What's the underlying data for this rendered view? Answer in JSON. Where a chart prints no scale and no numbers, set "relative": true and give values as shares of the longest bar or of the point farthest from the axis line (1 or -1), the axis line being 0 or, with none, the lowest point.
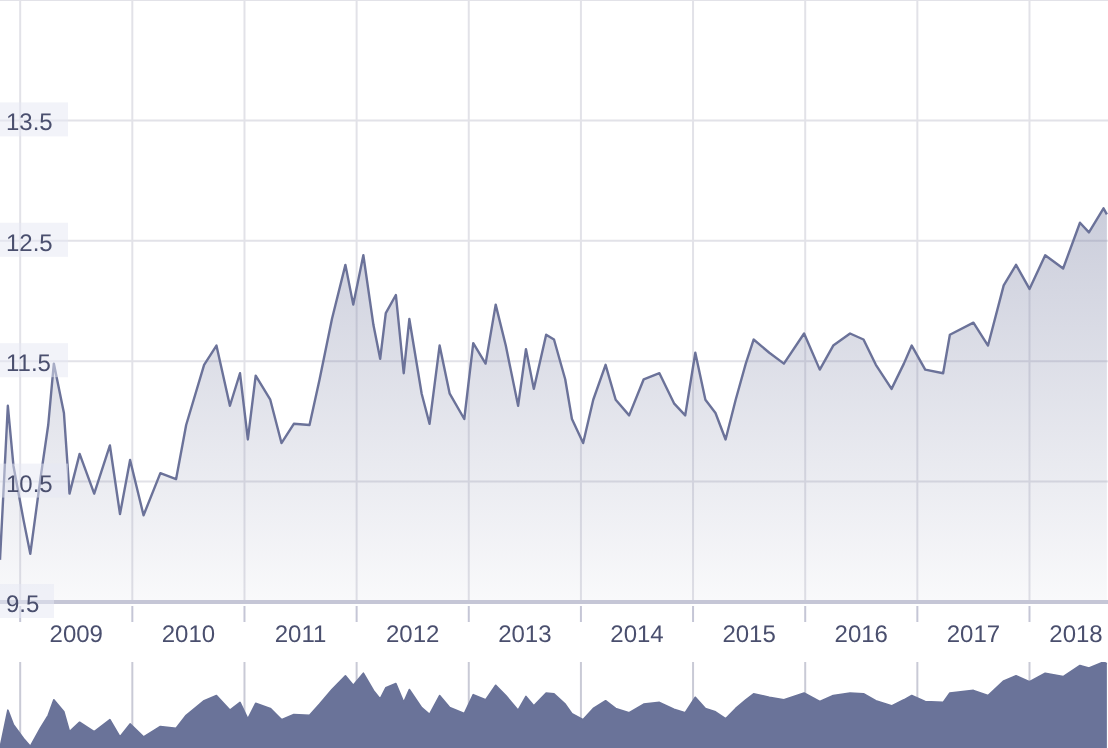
{
  "chart_data": [
    {
      "type": "area",
      "x": [
        2008.82,
        2008.89,
        2008.94,
        2009.03,
        2009.09,
        2009.18,
        2009.25,
        2009.3,
        2009.39,
        2009.44,
        2009.53,
        2009.66,
        2009.8,
        2009.89,
        2009.98,
        2010.1,
        2010.25,
        2010.39,
        2010.48,
        2010.64,
        2010.75,
        2010.87,
        2010.96,
        2011.03,
        2011.1,
        2011.23,
        2011.33,
        2011.44,
        2011.58,
        2011.67,
        2011.78,
        2011.9,
        2011.97,
        2012.06,
        2012.15,
        2012.21,
        2012.26,
        2012.35,
        2012.42,
        2012.47,
        2012.58,
        2012.65,
        2012.74,
        2012.83,
        2012.96,
        2013.04,
        2013.15,
        2013.24,
        2013.33,
        2013.44,
        2013.51,
        2013.58,
        2013.69,
        2013.76,
        2013.86,
        2013.92,
        2014.02,
        2014.11,
        2014.22,
        2014.31,
        2014.43,
        2014.56,
        2014.7,
        2014.83,
        2014.93,
        2015.02,
        2015.11,
        2015.2,
        2015.29,
        2015.38,
        2015.47,
        2015.54,
        2015.68,
        2015.81,
        2015.99,
        2016.13,
        2016.25,
        2016.4,
        2016.52,
        2016.63,
        2016.77,
        2016.88,
        2016.95,
        2017.07,
        2017.23,
        2017.29,
        2017.5,
        2017.63,
        2017.77,
        2017.88,
        2018.0,
        2018.14,
        2018.3,
        2018.45,
        2018.53,
        2018.66,
        2018.69
      ],
      "series": [
        {
          "color": "#6b7299",
          "values": [
            9.85,
            11.13,
            10.63,
            10.18,
            9.9,
            10.52,
            10.97,
            11.48,
            11.07,
            10.4,
            10.73,
            10.4,
            10.8,
            10.23,
            10.68,
            10.22,
            10.57,
            10.52,
            10.97,
            11.47,
            11.63,
            11.13,
            11.4,
            10.85,
            11.38,
            11.18,
            10.82,
            10.98,
            10.97,
            11.35,
            11.85,
            12.3,
            11.97,
            12.38,
            11.8,
            11.52,
            11.9,
            12.05,
            11.4,
            11.85,
            11.23,
            10.98,
            11.63,
            11.23,
            11.02,
            11.65,
            11.48,
            11.97,
            11.63,
            11.13,
            11.6,
            11.27,
            11.72,
            11.68,
            11.35,
            11.02,
            10.82,
            11.18,
            11.47,
            11.18,
            11.05,
            11.35,
            11.4,
            11.15,
            11.05,
            11.57,
            11.18,
            11.07,
            10.85,
            11.18,
            11.48,
            11.68,
            11.57,
            11.48,
            11.73,
            11.43,
            11.63,
            11.73,
            11.68,
            11.47,
            11.27,
            11.48,
            11.63,
            11.43,
            11.4,
            11.72,
            11.82,
            11.63,
            12.13,
            12.3,
            12.1,
            12.38,
            12.27,
            12.65,
            12.57,
            12.77,
            12.72
          ]
        }
      ],
      "xlim": [
        2008.82,
        2018.7
      ],
      "xticks": [
        {
          "value": 2009,
          "label": null
        },
        {
          "value": 2009.5,
          "label": "2009"
        },
        {
          "value": 2010,
          "label": null
        },
        {
          "value": 2010.5,
          "label": "2010"
        },
        {
          "value": 2011,
          "label": null
        },
        {
          "value": 2011.5,
          "label": "2011"
        },
        {
          "value": 2012,
          "label": null
        },
        {
          "value": 2012.5,
          "label": "2012"
        },
        {
          "value": 2013,
          "label": null
        },
        {
          "value": 2013.5,
          "label": "2013"
        },
        {
          "value": 2014,
          "label": null
        },
        {
          "value": 2014.5,
          "label": "2014"
        },
        {
          "value": 2015,
          "label": null
        },
        {
          "value": 2015.5,
          "label": "2015"
        },
        {
          "value": 2016,
          "label": null
        },
        {
          "value": 2016.5,
          "label": "2016"
        },
        {
          "value": 2017,
          "label": null
        },
        {
          "value": 2017.5,
          "label": "2017"
        },
        {
          "value": 2018,
          "label": null
        },
        {
          "value": 2018.5,
          "label": "2018"
        }
      ],
      "ylim": [
        9.5,
        14.5
      ],
      "yticks": [
        9.5,
        10.5,
        11.5,
        12.5,
        13.5
      ],
      "grid": true
    },
    {
      "type": "area",
      "x": [
        2008.82,
        2008.89,
        2008.94,
        2009.03,
        2009.09,
        2009.18,
        2009.25,
        2009.3,
        2009.39,
        2009.44,
        2009.53,
        2009.66,
        2009.8,
        2009.89,
        2009.98,
        2010.1,
        2010.25,
        2010.39,
        2010.48,
        2010.64,
        2010.75,
        2010.87,
        2010.96,
        2011.03,
        2011.1,
        2011.23,
        2011.33,
        2011.44,
        2011.58,
        2011.67,
        2011.78,
        2011.9,
        2011.97,
        2012.06,
        2012.15,
        2012.21,
        2012.26,
        2012.35,
        2012.42,
        2012.47,
        2012.58,
        2012.65,
        2012.74,
        2012.83,
        2012.96,
        2013.04,
        2013.15,
        2013.24,
        2013.33,
        2013.44,
        2013.51,
        2013.58,
        2013.69,
        2013.76,
        2013.86,
        2013.92,
        2014.02,
        2014.11,
        2014.22,
        2014.31,
        2014.43,
        2014.56,
        2014.7,
        2014.83,
        2014.93,
        2015.02,
        2015.11,
        2015.2,
        2015.29,
        2015.38,
        2015.47,
        2015.54,
        2015.68,
        2015.81,
        2015.99,
        2016.13,
        2016.25,
        2016.4,
        2016.52,
        2016.63,
        2016.77,
        2016.88,
        2016.95,
        2017.07,
        2017.23,
        2017.29,
        2017.5,
        2017.63,
        2017.77,
        2017.88,
        2018.0,
        2018.14,
        2018.3,
        2018.45,
        2018.53,
        2018.66,
        2018.69
      ],
      "series": [
        {
          "color": "#6a7399",
          "values": [
            0,
            0.44,
            0.27,
            0.11,
            0.02,
            0.23,
            0.38,
            0.56,
            0.42,
            0.19,
            0.3,
            0.19,
            0.33,
            0.13,
            0.28,
            0.13,
            0.25,
            0.23,
            0.38,
            0.55,
            0.61,
            0.44,
            0.53,
            0.34,
            0.52,
            0.46,
            0.33,
            0.39,
            0.38,
            0.51,
            0.68,
            0.84,
            0.73,
            0.87,
            0.67,
            0.57,
            0.7,
            0.75,
            0.53,
            0.68,
            0.47,
            0.39,
            0.61,
            0.47,
            0.4,
            0.62,
            0.56,
            0.73,
            0.61,
            0.44,
            0.6,
            0.49,
            0.64,
            0.63,
            0.51,
            0.4,
            0.33,
            0.46,
            0.55,
            0.46,
            0.41,
            0.51,
            0.53,
            0.45,
            0.41,
            0.59,
            0.46,
            0.42,
            0.34,
            0.46,
            0.56,
            0.63,
            0.59,
            0.56,
            0.64,
            0.54,
            0.61,
            0.64,
            0.63,
            0.55,
            0.49,
            0.56,
            0.61,
            0.54,
            0.53,
            0.64,
            0.67,
            0.61,
            0.78,
            0.84,
            0.77,
            0.87,
            0.83,
            0.96,
            0.93,
            1,
            0.98
          ]
        }
      ],
      "xlim": [
        2008.82,
        2018.7
      ],
      "xticks": [
        2009,
        2010,
        2011,
        2012,
        2013,
        2014,
        2015,
        2016,
        2017,
        2018
      ],
      "relative": true,
      "grid": "x",
      "tick_labels": false
    }
  ]
}
